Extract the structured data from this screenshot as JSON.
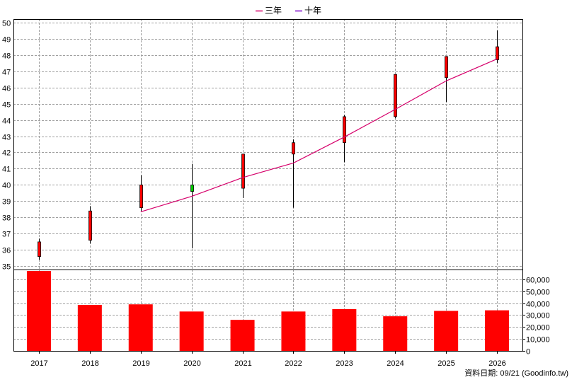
{
  "chart_data": {
    "type": "candlestick",
    "categories": [
      "2017",
      "2018",
      "2019",
      "2020",
      "2021",
      "2022",
      "2023",
      "2024",
      "2025",
      "2026"
    ],
    "legend": [
      {
        "label": "三年",
        "color": "#d6006b"
      },
      {
        "label": "十年",
        "color": "#7a00c8"
      }
    ],
    "price_axis": {
      "ylim": [
        34.8,
        50.2
      ],
      "ticks": [
        35,
        36,
        37,
        38,
        39,
        40,
        41,
        42,
        43,
        44,
        45,
        46,
        47,
        48,
        49,
        50
      ]
    },
    "volume_axis": {
      "ylim": [
        0,
        67000
      ],
      "ticks": [
        0,
        10000,
        20000,
        30000,
        40000,
        50000,
        60000
      ],
      "tick_labels": [
        "0",
        "10,000",
        "20,000",
        "30,000",
        "40,000",
        "50,000",
        "60,000"
      ]
    },
    "candles": [
      {
        "open": 35.6,
        "high": 36.7,
        "low": 35.4,
        "close": 36.5
      },
      {
        "open": 36.6,
        "high": 38.7,
        "low": 36.4,
        "close": 38.4
      },
      {
        "open": 38.6,
        "high": 40.6,
        "low": 38.4,
        "close": 40.0
      },
      {
        "open": 40.0,
        "high": 41.3,
        "low": 36.1,
        "close": 39.6
      },
      {
        "open": 39.8,
        "high": 41.9,
        "low": 39.2,
        "close": 41.9
      },
      {
        "open": 41.9,
        "high": 42.8,
        "low": 38.6,
        "close": 42.6
      },
      {
        "open": 42.6,
        "high": 44.3,
        "low": 41.4,
        "close": 44.2
      },
      {
        "open": 44.2,
        "high": 46.8,
        "low": 44.1,
        "close": 46.8
      },
      {
        "open": 46.6,
        "high": 47.9,
        "low": 45.1,
        "close": 47.9
      },
      {
        "open": 47.7,
        "high": 49.5,
        "low": 47.5,
        "close": 48.5
      }
    ],
    "up_color": "#ff0000",
    "down_color": "#00cc00",
    "three_year_line": [
      null,
      null,
      38.35,
      39.3,
      40.45,
      41.35,
      42.95,
      44.65,
      46.4,
      47.75
    ],
    "volumes": [
      67000,
      38500,
      39000,
      33000,
      26000,
      33000,
      35000,
      29000,
      33500,
      34000
    ],
    "volume_color": "#ff0000",
    "grid": true
  },
  "footer": {
    "source_label": "資料日期: 09/21 (Goodinfo.tw)"
  }
}
